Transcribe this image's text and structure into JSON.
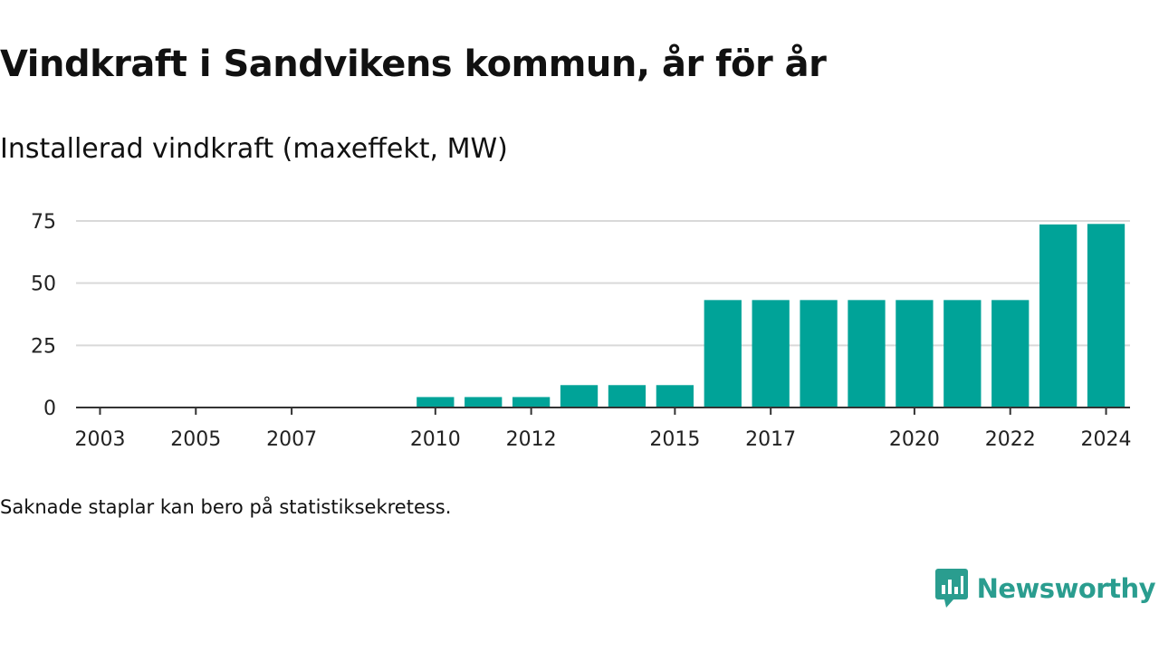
{
  "title": "Vindkraft i Sandvikens kommun, år för år",
  "subtitle": "Installerad vindkraft (maxeffekt, MW)",
  "note": "Saknade staplar kan bero på statistiksekretess.",
  "logo": {
    "text": "Newsworthy",
    "icon": "newsworthy-logo-icon",
    "color": "#2a9d8f"
  },
  "chart_data": {
    "type": "bar",
    "bar_color": "#00a398",
    "x": [
      2003,
      2004,
      2005,
      2006,
      2007,
      2008,
      2009,
      2010,
      2011,
      2012,
      2013,
      2014,
      2015,
      2016,
      2017,
      2018,
      2019,
      2020,
      2021,
      2022,
      2023,
      2024
    ],
    "values": [
      null,
      null,
      null,
      null,
      null,
      null,
      null,
      4.2,
      4.2,
      4.2,
      9,
      9,
      9,
      43.2,
      43.2,
      43.2,
      43.2,
      43.2,
      43.2,
      43.2,
      73.6,
      73.8
    ],
    "x_ticks": [
      2003,
      2005,
      2007,
      2010,
      2012,
      2015,
      2017,
      2020,
      2022,
      2024
    ],
    "y_ticks": [
      0,
      25,
      50,
      75
    ],
    "ylim": [
      0,
      75
    ],
    "grid": true
  }
}
